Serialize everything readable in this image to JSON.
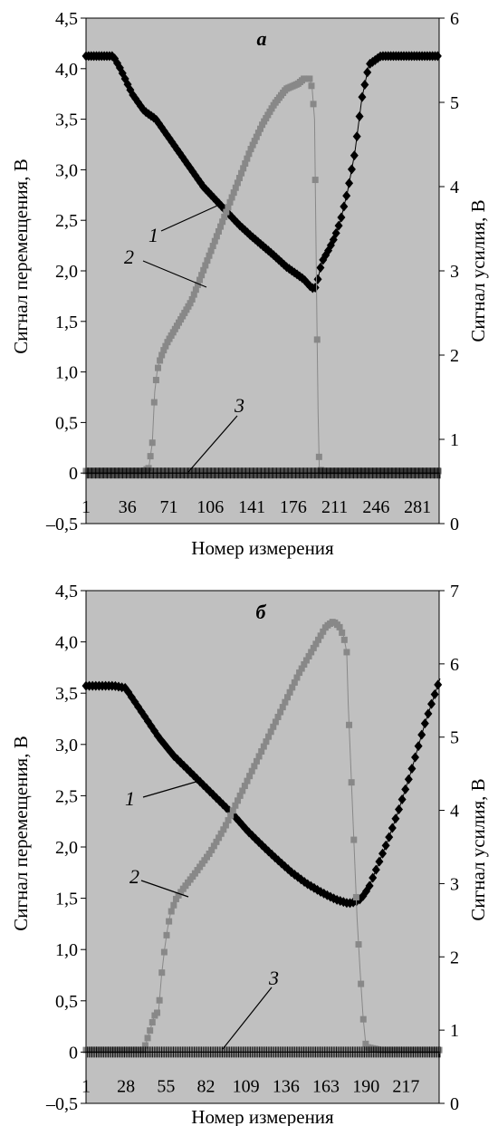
{
  "chart_data": [
    {
      "type": "scatter",
      "title": "а",
      "xlabel": "Номер измерения",
      "ylabel": "Сигнал перемещения, В",
      "y2label": "Сигнал усилия, В",
      "x_range": [
        1,
        300
      ],
      "x_ticks": [
        "1",
        "36",
        "71",
        "106",
        "141",
        "176",
        "211",
        "246",
        "281"
      ],
      "x_tick_values": [
        1,
        36,
        71,
        106,
        141,
        176,
        211,
        246,
        281
      ],
      "ylim": [
        -0.5,
        4.5
      ],
      "y_ticks": [
        "–0,5",
        "0",
        "0,5",
        "1,0",
        "1,5",
        "2,0",
        "2,5",
        "3,0",
        "3,5",
        "4,0",
        "4,5"
      ],
      "y_tick_values": [
        -0.5,
        0,
        0.5,
        1,
        1.5,
        2,
        2.5,
        3,
        3.5,
        4,
        4.5
      ],
      "y2lim": [
        0,
        6
      ],
      "y2_ticks": [
        "0",
        "1",
        "2",
        "3",
        "4",
        "5",
        "6"
      ],
      "y2_tick_values": [
        0,
        1,
        2,
        3,
        4,
        5,
        6
      ],
      "background": "#c0c0c0",
      "grid": false,
      "series": [
        {
          "label": "1",
          "axis": "y2",
          "marker": "diamond",
          "color": "#000000",
          "x": [
            1,
            10,
            20,
            24,
            30,
            40,
            50,
            60,
            70,
            80,
            90,
            100,
            110,
            120,
            130,
            140,
            150,
            160,
            170,
            180,
            185,
            190,
            194,
            196,
            200,
            206,
            211,
            216,
            222,
            228,
            234,
            240,
            250,
            260,
            281,
            300
          ],
          "y": [
            5.55,
            5.55,
            5.55,
            5.55,
            5.4,
            5.1,
            4.9,
            4.8,
            4.6,
            4.4,
            4.2,
            4.0,
            3.85,
            3.7,
            3.55,
            3.42,
            3.3,
            3.18,
            3.05,
            2.95,
            2.9,
            2.82,
            2.78,
            2.85,
            3.1,
            3.25,
            3.4,
            3.6,
            3.95,
            4.4,
            5.05,
            5.45,
            5.55,
            5.55,
            5.55,
            5.55
          ]
        },
        {
          "label": "2",
          "axis": "y",
          "marker": "square",
          "color": "#888888",
          "x": [
            1,
            10,
            20,
            30,
            40,
            50,
            54,
            57,
            59,
            61,
            63,
            66,
            70,
            75,
            80,
            90,
            100,
            110,
            120,
            130,
            140,
            150,
            160,
            170,
            180,
            185,
            190,
            192,
            194,
            196,
            197,
            198,
            200,
            220,
            250,
            280,
            300
          ],
          "y": [
            0.02,
            0.02,
            0.02,
            0.02,
            0.02,
            0.02,
            0.05,
            0.3,
            0.8,
            1.0,
            1.1,
            1.2,
            1.3,
            1.4,
            1.5,
            1.7,
            2.0,
            2.3,
            2.6,
            2.9,
            3.2,
            3.45,
            3.65,
            3.8,
            3.85,
            3.9,
            3.9,
            3.8,
            3.5,
            1.5,
            0.6,
            0.05,
            0.02,
            0.02,
            0.02,
            0.02,
            0.02
          ]
        },
        {
          "label": "3",
          "axis": "y",
          "marker": "plus",
          "color": "#000000",
          "x": [
            1,
            300
          ],
          "y": [
            0.0,
            0.0
          ]
        }
      ]
    },
    {
      "type": "scatter",
      "title": "б",
      "xlabel": "Номер измерения",
      "ylabel": "Сигнал перемещения, В",
      "y2label": "Сигнал усилия, В",
      "x_range": [
        1,
        240
      ],
      "x_ticks": [
        "1",
        "28",
        "55",
        "82",
        "109",
        "136",
        "163",
        "190",
        "217"
      ],
      "x_tick_values": [
        1,
        28,
        55,
        82,
        109,
        136,
        163,
        190,
        217
      ],
      "ylim": [
        -0.5,
        4.5
      ],
      "y_ticks": [
        "–0,5",
        "0",
        "0,5",
        "1,0",
        "1,5",
        "2,0",
        "2,5",
        "3,0",
        "3,5",
        "4,0",
        "4,5"
      ],
      "y_tick_values": [
        -0.5,
        0,
        0.5,
        1,
        1.5,
        2,
        2.5,
        3,
        3.5,
        4,
        4.5
      ],
      "y2lim": [
        0,
        7
      ],
      "y2_ticks": [
        "0",
        "1",
        "2",
        "3",
        "4",
        "5",
        "6",
        "7"
      ],
      "y2_tick_values": [
        0,
        1,
        2,
        3,
        4,
        5,
        6,
        7
      ],
      "background": "#c0c0c0",
      "grid": false,
      "series": [
        {
          "label": "1",
          "axis": "y2",
          "marker": "diamond",
          "color": "#000000",
          "x": [
            1,
            10,
            20,
            28,
            30,
            40,
            50,
            60,
            70,
            80,
            90,
            100,
            110,
            120,
            130,
            140,
            150,
            160,
            170,
            178,
            183,
            187,
            192,
            198,
            205,
            212,
            220,
            230,
            240
          ],
          "y": [
            5.7,
            5.7,
            5.7,
            5.67,
            5.6,
            5.3,
            5.0,
            4.75,
            4.55,
            4.35,
            4.15,
            3.95,
            3.72,
            3.52,
            3.33,
            3.15,
            3.0,
            2.88,
            2.78,
            2.73,
            2.75,
            2.8,
            2.95,
            3.25,
            3.6,
            4.0,
            4.5,
            5.2,
            5.8
          ]
        },
        {
          "label": "2",
          "axis": "y",
          "marker": "square",
          "color": "#888888",
          "x": [
            1,
            20,
            40,
            44,
            47,
            50,
            52,
            54,
            56,
            58,
            62,
            67,
            75,
            85,
            95,
            105,
            115,
            125,
            135,
            145,
            155,
            163,
            168,
            172,
            175,
            177,
            178,
            180,
            182,
            184,
            186,
            188,
            190,
            200,
            220,
            240
          ],
          "y": [
            0.02,
            0.02,
            0.02,
            0.2,
            0.35,
            0.4,
            0.75,
            1.0,
            1.2,
            1.35,
            1.5,
            1.6,
            1.75,
            1.95,
            2.2,
            2.5,
            2.8,
            3.1,
            3.4,
            3.7,
            3.95,
            4.15,
            4.2,
            4.15,
            4.05,
            3.9,
            3.4,
            2.7,
            2.0,
            1.3,
            0.8,
            0.35,
            0.05,
            0.02,
            0.02,
            0.02
          ]
        },
        {
          "label": "3",
          "axis": "y",
          "marker": "plus",
          "color": "#000000",
          "x": [
            1,
            240
          ],
          "y": [
            0.0,
            0.0
          ]
        }
      ]
    }
  ]
}
